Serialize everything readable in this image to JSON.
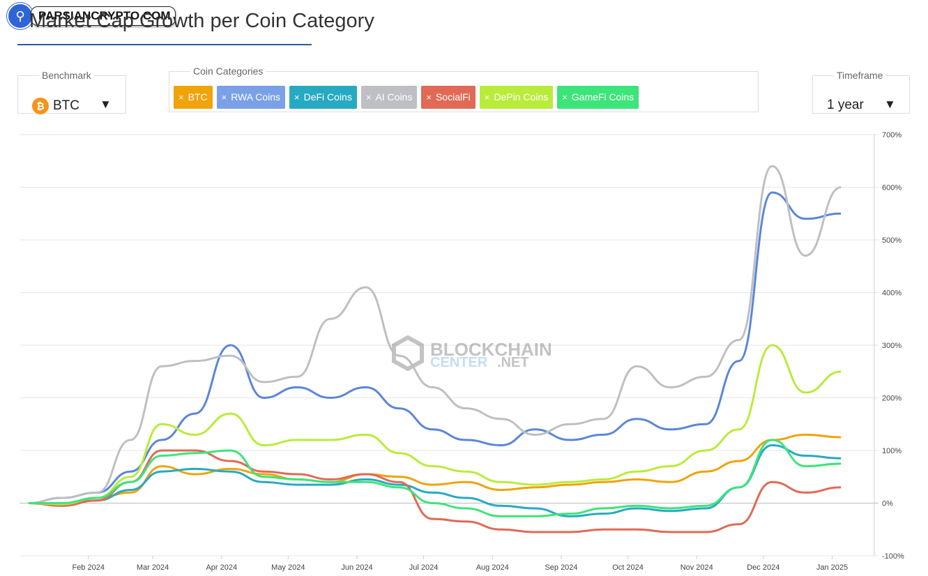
{
  "header": {
    "title": "Market Cap Growth per Coin Category"
  },
  "logo": {
    "text": "PARSIANCRYPTO.COM"
  },
  "benchmark": {
    "legend": "Benchmark",
    "value": "BTC",
    "icon": "bitcoin-icon",
    "caret": "▼"
  },
  "categories": {
    "legend": "Coin Categories",
    "chips": [
      {
        "label": "BTC",
        "color": "#f0a30a"
      },
      {
        "label": "RWA Coins",
        "color": "#7aa0e8"
      },
      {
        "label": "DeFi Coins",
        "color": "#27a9c2"
      },
      {
        "label": "AI Coins",
        "color": "#bdbfc2"
      },
      {
        "label": "SocialFi",
        "color": "#e06a55"
      },
      {
        "label": "DePin Coins",
        "color": "#b9ec3a"
      },
      {
        "label": "GameFi Coins",
        "color": "#3de47a"
      }
    ]
  },
  "timeframe": {
    "legend": "Timeframe",
    "value": "1 year",
    "caret": "▼"
  },
  "watermark": {
    "line1": "BLOCKCHAIN",
    "line2": "CENTER",
    "line3": ".NET"
  },
  "chart_data": {
    "type": "line",
    "x": [
      "2024-01-05",
      "2024-01-20",
      "2024-02-05",
      "2024-02-20",
      "2024-03-05",
      "2024-03-20",
      "2024-04-05",
      "2024-04-20",
      "2024-05-05",
      "2024-05-20",
      "2024-06-05",
      "2024-06-20",
      "2024-07-05",
      "2024-07-20",
      "2024-08-05",
      "2024-08-20",
      "2024-09-05",
      "2024-09-20",
      "2024-10-05",
      "2024-10-20",
      "2024-11-05",
      "2024-11-20",
      "2024-12-05",
      "2024-12-20",
      "2025-01-05"
    ],
    "x_ticks": [
      "Feb 2024",
      "Mar 2024",
      "Apr 2024",
      "May 2024",
      "Jun 2024",
      "Jul 2024",
      "Aug 2024",
      "Sep 2024",
      "Oct 2024",
      "Nov 2024",
      "Dec 2024",
      "Jan 2025"
    ],
    "y_ticks": [
      "700%",
      "600%",
      "500%",
      "400%",
      "300%",
      "200%",
      "100%",
      "0%",
      "-100%"
    ],
    "ylim": [
      -100,
      700
    ],
    "grid": true,
    "series": [
      {
        "name": "BTC",
        "color": "#f0a30a",
        "values": [
          0,
          -5,
          10,
          20,
          70,
          55,
          65,
          55,
          45,
          40,
          55,
          50,
          35,
          40,
          25,
          30,
          35,
          40,
          45,
          40,
          60,
          80,
          120,
          130,
          125
        ]
      },
      {
        "name": "RWA Coins",
        "color": "#5b86d8",
        "values": [
          0,
          10,
          20,
          60,
          120,
          170,
          300,
          200,
          220,
          200,
          220,
          180,
          140,
          120,
          110,
          140,
          120,
          130,
          160,
          140,
          150,
          270,
          590,
          540,
          550
        ]
      },
      {
        "name": "DeFi Coins",
        "color": "#27a9c2",
        "values": [
          0,
          -2,
          5,
          25,
          60,
          65,
          60,
          40,
          35,
          35,
          45,
          35,
          20,
          10,
          -5,
          -10,
          -25,
          -20,
          -10,
          -15,
          -10,
          30,
          110,
          90,
          85
        ]
      },
      {
        "name": "AI Coins",
        "color": "#bdbfc2",
        "values": [
          0,
          10,
          20,
          120,
          260,
          270,
          280,
          230,
          240,
          350,
          410,
          280,
          220,
          180,
          160,
          130,
          150,
          160,
          260,
          220,
          240,
          310,
          640,
          470,
          600
        ]
      },
      {
        "name": "SocialFi",
        "color": "#e06a55",
        "values": [
          0,
          -5,
          5,
          40,
          100,
          100,
          80,
          60,
          55,
          45,
          55,
          40,
          -30,
          -35,
          -50,
          -55,
          -55,
          -50,
          -50,
          -55,
          -55,
          -40,
          40,
          20,
          30
        ]
      },
      {
        "name": "DePin Coins",
        "color": "#b9ec3a",
        "values": [
          0,
          -2,
          10,
          50,
          150,
          130,
          170,
          110,
          120,
          120,
          130,
          95,
          70,
          60,
          40,
          35,
          40,
          45,
          60,
          70,
          100,
          140,
          300,
          210,
          250
        ]
      },
      {
        "name": "GameFi Coins",
        "color": "#3de47a",
        "values": [
          0,
          0,
          10,
          40,
          90,
          95,
          100,
          50,
          45,
          40,
          40,
          30,
          0,
          -10,
          -25,
          -25,
          -20,
          -10,
          -5,
          -10,
          -5,
          30,
          120,
          70,
          75
        ]
      }
    ]
  }
}
